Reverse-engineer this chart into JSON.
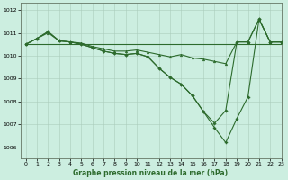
{
  "xlabel": "Graphe pression niveau de la mer (hPa)",
  "xlim": [
    -0.5,
    23
  ],
  "ylim": [
    1005.5,
    1012.3
  ],
  "yticks": [
    1006,
    1007,
    1008,
    1009,
    1010,
    1011,
    1012
  ],
  "xticks": [
    0,
    1,
    2,
    3,
    4,
    5,
    6,
    7,
    8,
    9,
    10,
    11,
    12,
    13,
    14,
    15,
    16,
    17,
    18,
    19,
    20,
    21,
    22,
    23
  ],
  "background_color": "#cceee0",
  "grid_color": "#aaccbb",
  "line_color": "#2d6b2d",
  "line1": [
    1010.5,
    1010.5,
    1010.5,
    1010.5,
    1010.5,
    1010.5,
    1010.5,
    1010.5,
    1010.5,
    1010.5,
    1010.5,
    1010.5,
    1010.5,
    1010.5,
    1010.5,
    1010.5,
    1010.5,
    1010.5,
    1010.5,
    1010.5,
    1010.5,
    1010.5,
    1010.5,
    1010.5
  ],
  "line2": [
    1010.5,
    1010.75,
    1011.0,
    1010.65,
    1010.6,
    1010.55,
    1010.4,
    1010.3,
    1010.2,
    1010.2,
    1010.25,
    1010.15,
    1010.05,
    1009.95,
    1010.05,
    1009.9,
    1009.85,
    1009.75,
    1009.65,
    1010.6,
    1010.6,
    1011.6,
    1010.6,
    1010.6
  ],
  "line3": [
    1010.5,
    1010.75,
    1011.05,
    1010.65,
    1010.6,
    1010.5,
    1010.35,
    1010.2,
    1010.1,
    1010.05,
    1010.1,
    1009.95,
    1009.45,
    1009.05,
    1008.75,
    1008.25,
    1007.55,
    1007.05,
    1007.6,
    1010.6,
    1010.6,
    1011.6,
    1010.6,
    1010.6
  ],
  "line4": [
    1010.5,
    1010.75,
    1011.05,
    1010.65,
    1010.6,
    1010.5,
    1010.35,
    1010.2,
    1010.1,
    1010.05,
    1010.1,
    1009.95,
    1009.45,
    1009.05,
    1008.75,
    1008.25,
    1007.55,
    1006.85,
    1006.2,
    1007.25,
    1008.2,
    1011.6,
    1010.6,
    1010.6
  ]
}
